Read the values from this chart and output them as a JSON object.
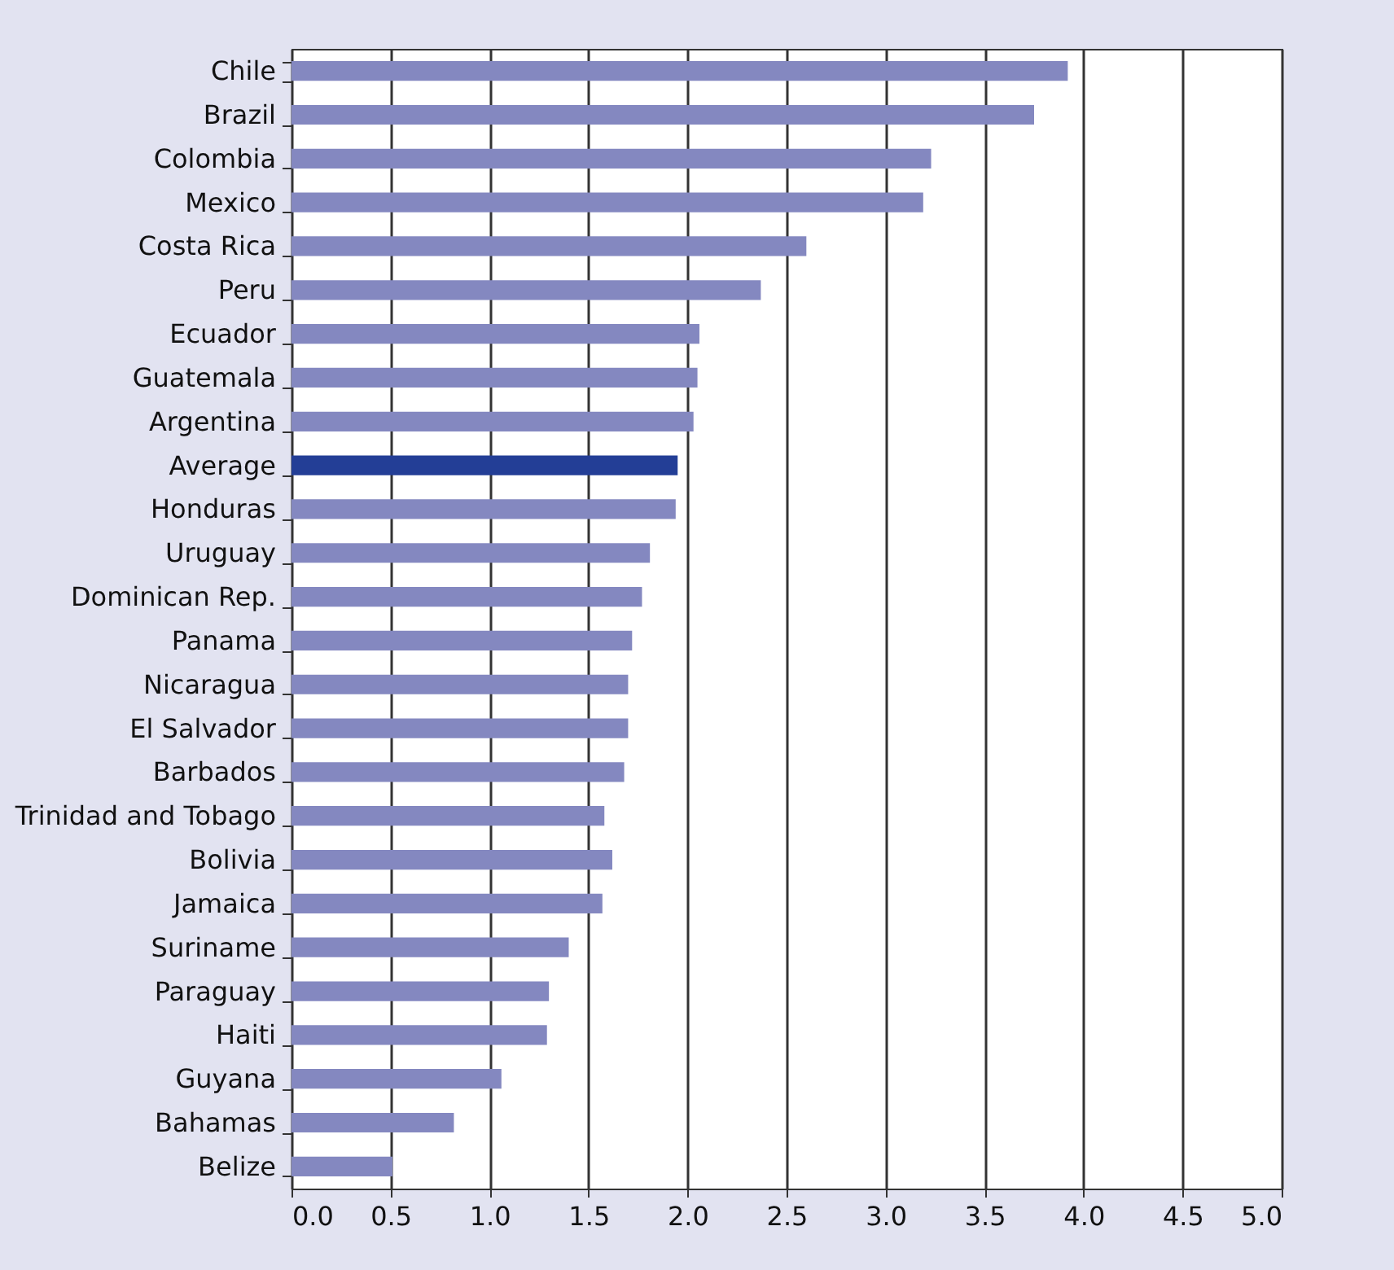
{
  "chart_data": {
    "type": "bar",
    "orientation": "horizontal",
    "categories": [
      "Chile",
      "Brazil",
      "Colombia",
      "Mexico",
      "Costa Rica",
      "Peru",
      "Ecuador",
      "Guatemala",
      "Argentina",
      "Average",
      "Honduras",
      "Uruguay",
      "Dominican Rep.",
      "Panama",
      "Nicaragua",
      "El Salvador",
      "Barbados",
      "Trinidad and Tobago",
      "Bolivia",
      "Jamaica",
      "Suriname",
      "Paraguay",
      "Haiti",
      "Guyana",
      "Bahamas",
      "Belize"
    ],
    "values": [
      3.92,
      3.75,
      3.23,
      3.19,
      2.6,
      2.37,
      2.06,
      2.05,
      2.03,
      1.95,
      1.94,
      1.81,
      1.77,
      1.72,
      1.7,
      1.7,
      1.68,
      1.58,
      1.62,
      1.57,
      1.4,
      1.3,
      1.29,
      1.06,
      0.82,
      0.51
    ],
    "colors": [
      "#8488c0",
      "#8488c0",
      "#8488c0",
      "#8488c0",
      "#8488c0",
      "#8488c0",
      "#8488c0",
      "#8488c0",
      "#8488c0",
      "#233e96",
      "#8488c0",
      "#8488c0",
      "#8488c0",
      "#8488c0",
      "#8488c0",
      "#8488c0",
      "#8488c0",
      "#8488c0",
      "#8488c0",
      "#8488c0",
      "#8488c0",
      "#8488c0",
      "#8488c0",
      "#8488c0",
      "#8488c0",
      "#8488c0"
    ],
    "xlim": [
      0,
      5
    ],
    "xticks": [
      {
        "value": 0,
        "label": "0.0"
      },
      {
        "value": 0.5,
        "label": "0.5"
      },
      {
        "value": 1,
        "label": "1.0"
      },
      {
        "value": 1.5,
        "label": "1.5"
      },
      {
        "value": 2,
        "label": "2.0"
      },
      {
        "value": 2.5,
        "label": "2.5"
      },
      {
        "value": 3,
        "label": "3.0"
      },
      {
        "value": 3.5,
        "label": "3.5"
      },
      {
        "value": 4,
        "label": "4.0"
      },
      {
        "value": 4.5,
        "label": "4.5"
      },
      {
        "value": 5,
        "label": "5.0"
      }
    ],
    "grid": "x"
  }
}
